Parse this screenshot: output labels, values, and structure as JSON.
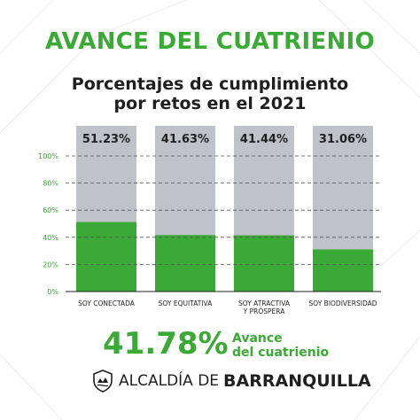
{
  "title": "AVANCE DEL CUATRIENIO",
  "subtitle_lines": [
    "Porcentajes de cumplimiento",
    "por retos en el 2021"
  ],
  "colors": {
    "accent": "#3aa935",
    "bar_green": "#3aa935",
    "bar_remainder": "#bfc2c8",
    "text_dark": "#1f1f1f"
  },
  "chart_data": {
    "type": "bar",
    "stacked": true,
    "title": "Porcentajes de cumplimiento por retos en el 2021",
    "categories": [
      "SOY CONECTADA",
      "SOY EQUITATIVA",
      "SOY ATRACTIVA Y PRÓSPERA",
      "SOY BIODIVERSIDAD"
    ],
    "category_lines": [
      [
        "SOY CONECTADA"
      ],
      [
        "SOY EQUITATIVA"
      ],
      [
        "SOY ATRACTIVA",
        "Y PRÓSPERA"
      ],
      [
        "SOY BIODIVERSIDAD"
      ]
    ],
    "values": [
      51.23,
      41.63,
      41.44,
      31.06
    ],
    "value_labels": [
      "51.23%",
      "41.63%",
      "41.44%",
      "31.06%"
    ],
    "ylim": [
      0,
      100
    ],
    "yticks": [
      "0%",
      "20%",
      "40%",
      "60%",
      "80%",
      "100%"
    ],
    "grid": "dashed",
    "xlabel": "",
    "ylabel": ""
  },
  "summary": {
    "value": "41.78%",
    "label_lines": [
      "Avance",
      "del cuatrienio"
    ]
  },
  "footer": {
    "prefix": "ALCALDÍA DE",
    "name": "BARRANQUILLA",
    "icon": "city-seal-icon"
  }
}
